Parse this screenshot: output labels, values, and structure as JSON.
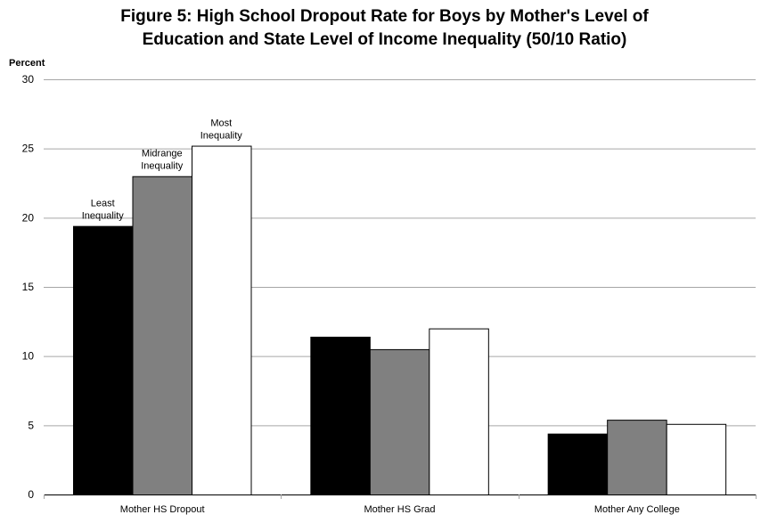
{
  "chart_data": {
    "type": "bar",
    "title_lines": [
      "Figure 5: High School Dropout Rate for Boys by Mother's Level of",
      "Education and State Level of Income Inequality (50/10 Ratio)"
    ],
    "ylabel": "Percent",
    "xlabel": "",
    "ylim": [
      0,
      30
    ],
    "yticks": [
      0,
      5,
      10,
      15,
      20,
      25,
      30
    ],
    "grid": true,
    "categories": [
      "Mother HS Dropout",
      "Mother HS Grad",
      "Mother Any College"
    ],
    "series": [
      {
        "name": "Least Inequality",
        "label_lines": [
          "Least",
          "Inequality"
        ],
        "values": [
          19.4,
          11.4,
          4.4
        ],
        "fill": "#000000"
      },
      {
        "name": "Midrange Inequality",
        "label_lines": [
          "Midrange",
          "Inequality"
        ],
        "values": [
          23.0,
          10.5,
          5.4
        ],
        "fill": "#808080"
      },
      {
        "name": "Most Inequality",
        "label_lines": [
          "Most",
          "Inequality"
        ],
        "values": [
          25.2,
          12.0,
          5.1
        ],
        "fill": "#ffffff"
      }
    ],
    "colors": {
      "gridline": "#a6a6a6",
      "axis": "#a6a6a6",
      "bar_stroke": "#000000"
    }
  }
}
